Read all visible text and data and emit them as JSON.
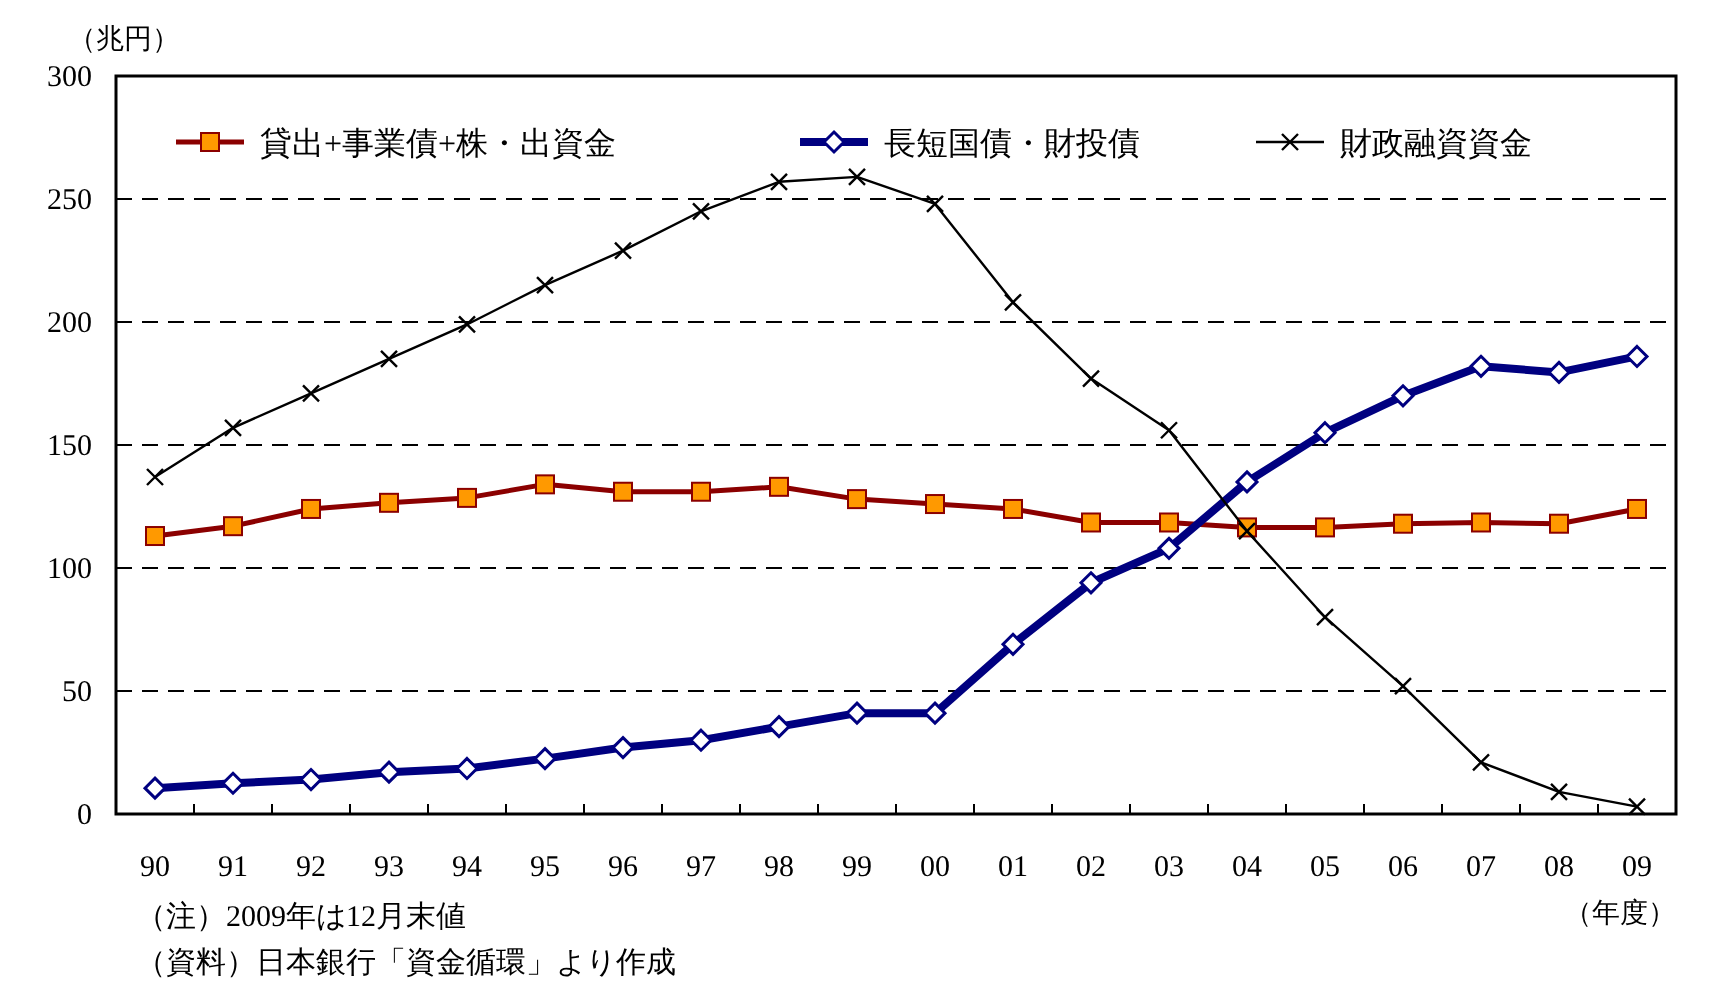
{
  "chart_data": {
    "type": "line",
    "ylabel": "（兆円）",
    "xlabel": "（年度）",
    "categories": [
      "90",
      "91",
      "92",
      "93",
      "94",
      "95",
      "96",
      "97",
      "98",
      "99",
      "00",
      "01",
      "02",
      "03",
      "04",
      "05",
      "06",
      "07",
      "08",
      "09"
    ],
    "series": [
      {
        "name": "貸出+事業債+株・出資金",
        "color": "#8b0000",
        "marker": "square",
        "values": [
          113,
          117,
          124,
          126.5,
          128.5,
          134,
          131,
          131,
          133,
          128,
          126,
          124,
          118.5,
          118.5,
          116.5,
          116.5,
          118,
          118.5,
          118,
          124
        ]
      },
      {
        "name": "長短国債・財投債",
        "color": "#000080",
        "marker": "diamond",
        "values": [
          10.5,
          12.5,
          14,
          17,
          18.5,
          22.5,
          27,
          30,
          35.5,
          41,
          41,
          69,
          94,
          108,
          135,
          155,
          170,
          182,
          179.5,
          186
        ]
      },
      {
        "name": "財政融資資金",
        "color": "#000000",
        "marker": "cross",
        "values": [
          137,
          157,
          171,
          185,
          199,
          215,
          229,
          245,
          257,
          259,
          248,
          208,
          177,
          156,
          115,
          80,
          52,
          21,
          9,
          3
        ]
      }
    ],
    "ylim": [
      0,
      300
    ],
    "yticks": [
      0,
      50,
      100,
      150,
      200,
      250,
      300
    ],
    "grid": "y",
    "legend": "top",
    "annotations": [
      "（注）2009年は12月末値",
      "（資料）日本銀行「資金循環」より作成"
    ]
  }
}
